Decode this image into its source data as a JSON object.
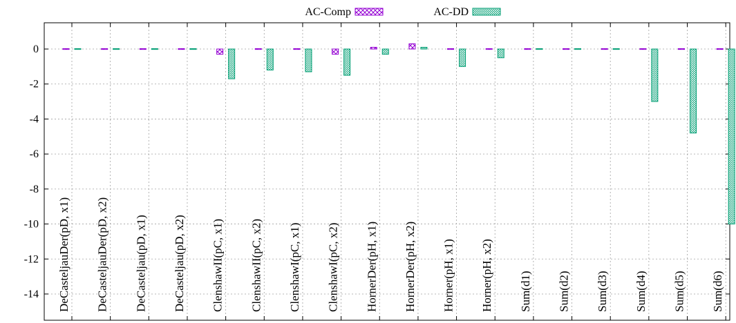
{
  "chart_data": {
    "type": "bar",
    "categories": [
      "DeCasteljauDer(pD, x1)",
      "DeCasteljauDer(pD, x2)",
      "DeCasteljau(pD, x1)",
      "DeCasteljau(pD, x2)",
      "ClenshawII(pC, x1)",
      "ClenshawII(pC, x2)",
      "ClenshawI(pC, x1)",
      "ClenshawI(pC, x2)",
      "HornerDer(pH, x1)",
      "HornerDer(pH, x2)",
      "Horner(pH, x1)",
      "Horner(pH, x2)",
      "Sum(d1)",
      "Sum(d2)",
      "Sum(d3)",
      "Sum(d4)",
      "Sum(d5)",
      "Sum(d6)"
    ],
    "series": [
      {
        "name": "AC-Comp",
        "color": "#9400d3",
        "values": [
          0,
          0,
          0,
          0,
          -0.3,
          0,
          0,
          -0.3,
          0.1,
          0.3,
          0,
          0,
          0,
          0,
          0,
          0,
          0,
          0
        ]
      },
      {
        "name": "AC-DD",
        "color": "#009e73",
        "values": [
          0,
          0,
          0,
          0,
          -1.7,
          -1.2,
          -1.3,
          -1.5,
          -0.3,
          0.1,
          -1.0,
          -0.5,
          0,
          0,
          0,
          -3.0,
          -4.8,
          -10.0
        ]
      }
    ],
    "ylim": [
      -15.5,
      1.5
    ],
    "yticks": [
      "0",
      "-2",
      "-4",
      "-6",
      "-8",
      "-10",
      "-12",
      "-14"
    ],
    "ytick_values": [
      0,
      -2,
      -4,
      -6,
      -8,
      -10,
      -12,
      -14
    ],
    "grid": true,
    "legend_position": "top-center",
    "xlabel": "",
    "ylabel": "",
    "title": ""
  }
}
